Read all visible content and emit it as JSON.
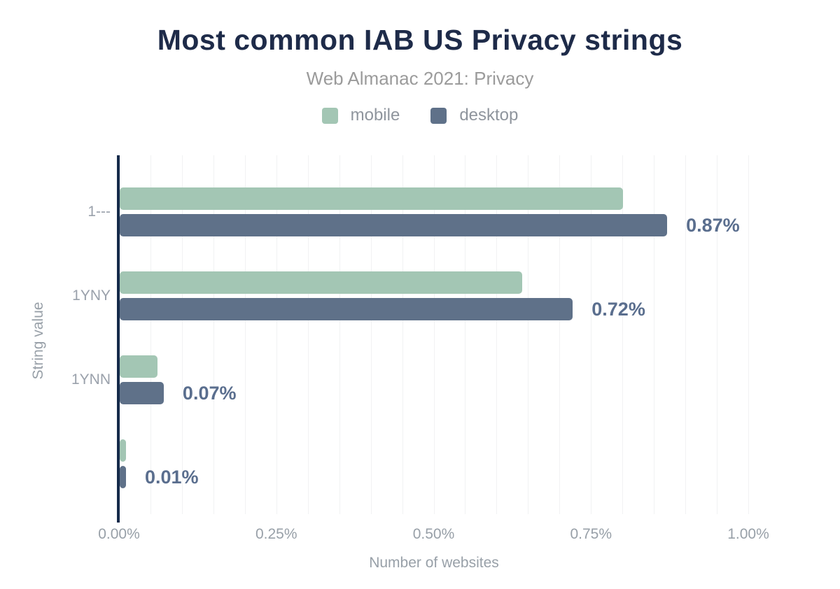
{
  "chart_data": {
    "type": "bar",
    "orientation": "horizontal",
    "title": "Most common IAB US Privacy strings",
    "subtitle": "Web Almanac 2021: Privacy",
    "xlabel": "Number of websites",
    "ylabel": "String value",
    "categories": [
      "1---",
      "1YNY",
      "1YNN",
      ""
    ],
    "series": [
      {
        "name": "mobile",
        "color": "#a3c6b4",
        "values": [
          0.8,
          0.64,
          0.06,
          0.01
        ]
      },
      {
        "name": "desktop",
        "color": "#5f7189",
        "values": [
          0.87,
          0.72,
          0.07,
          0.01
        ]
      }
    ],
    "bar_labels": [
      "0.87%",
      "0.72%",
      "0.07%",
      "0.01%"
    ],
    "xticks": [
      {
        "value": 0.0,
        "label": "0.00%"
      },
      {
        "value": 0.25,
        "label": "0.25%"
      },
      {
        "value": 0.5,
        "label": "0.50%"
      },
      {
        "value": 0.75,
        "label": "0.75%"
      },
      {
        "value": 1.0,
        "label": "1.00%"
      }
    ],
    "xlim": [
      0,
      1.0
    ],
    "grid": true,
    "grid_step": 0.05,
    "legend_position": "top",
    "colors": {
      "title": "#1e2b49",
      "subtitle": "#9b9b9b",
      "axis_text": "#98a0a8",
      "data_label": "#5a6e8e",
      "axis_line": "#152a4a",
      "gridline": "#f1f2f3",
      "background": "#ffffff"
    }
  }
}
